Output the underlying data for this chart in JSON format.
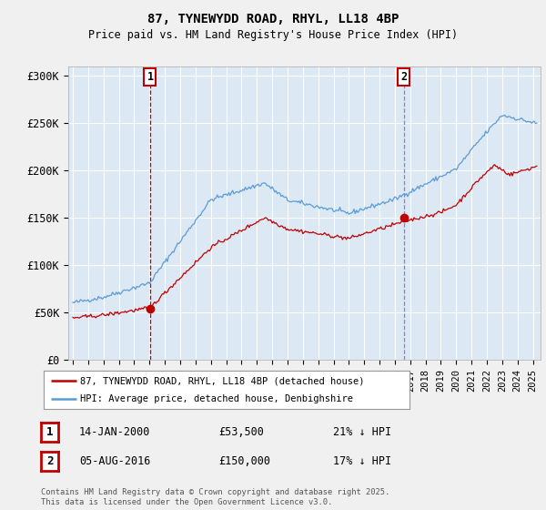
{
  "title": "87, TYNEWYDD ROAD, RHYL, LL18 4BP",
  "subtitle": "Price paid vs. HM Land Registry's House Price Index (HPI)",
  "ylabel_ticks": [
    "£0",
    "£50K",
    "£100K",
    "£150K",
    "£200K",
    "£250K",
    "£300K"
  ],
  "ytick_vals": [
    0,
    50000,
    100000,
    150000,
    200000,
    250000,
    300000
  ],
  "ylim": [
    0,
    310000
  ],
  "xlim_start": 1994.7,
  "xlim_end": 2025.5,
  "hpi_color": "#5b9bd5",
  "price_color": "#c00000",
  "marker1_x": 2000.04,
  "marker1_y": 53500,
  "marker2_x": 2016.59,
  "marker2_y": 150000,
  "legend_line1": "87, TYNEWYDD ROAD, RHYL, LL18 4BP (detached house)",
  "legend_line2": "HPI: Average price, detached house, Denbighshire",
  "table_row1": [
    "1",
    "14-JAN-2000",
    "£53,500",
    "21% ↓ HPI"
  ],
  "table_row2": [
    "2",
    "05-AUG-2016",
    "£150,000",
    "17% ↓ HPI"
  ],
  "footer": "Contains HM Land Registry data © Crown copyright and database right 2025.\nThis data is licensed under the Open Government Licence v3.0.",
  "background_color": "#f0f0f0",
  "plot_bg_color": "#dce9f5",
  "grid_color": "#ffffff"
}
